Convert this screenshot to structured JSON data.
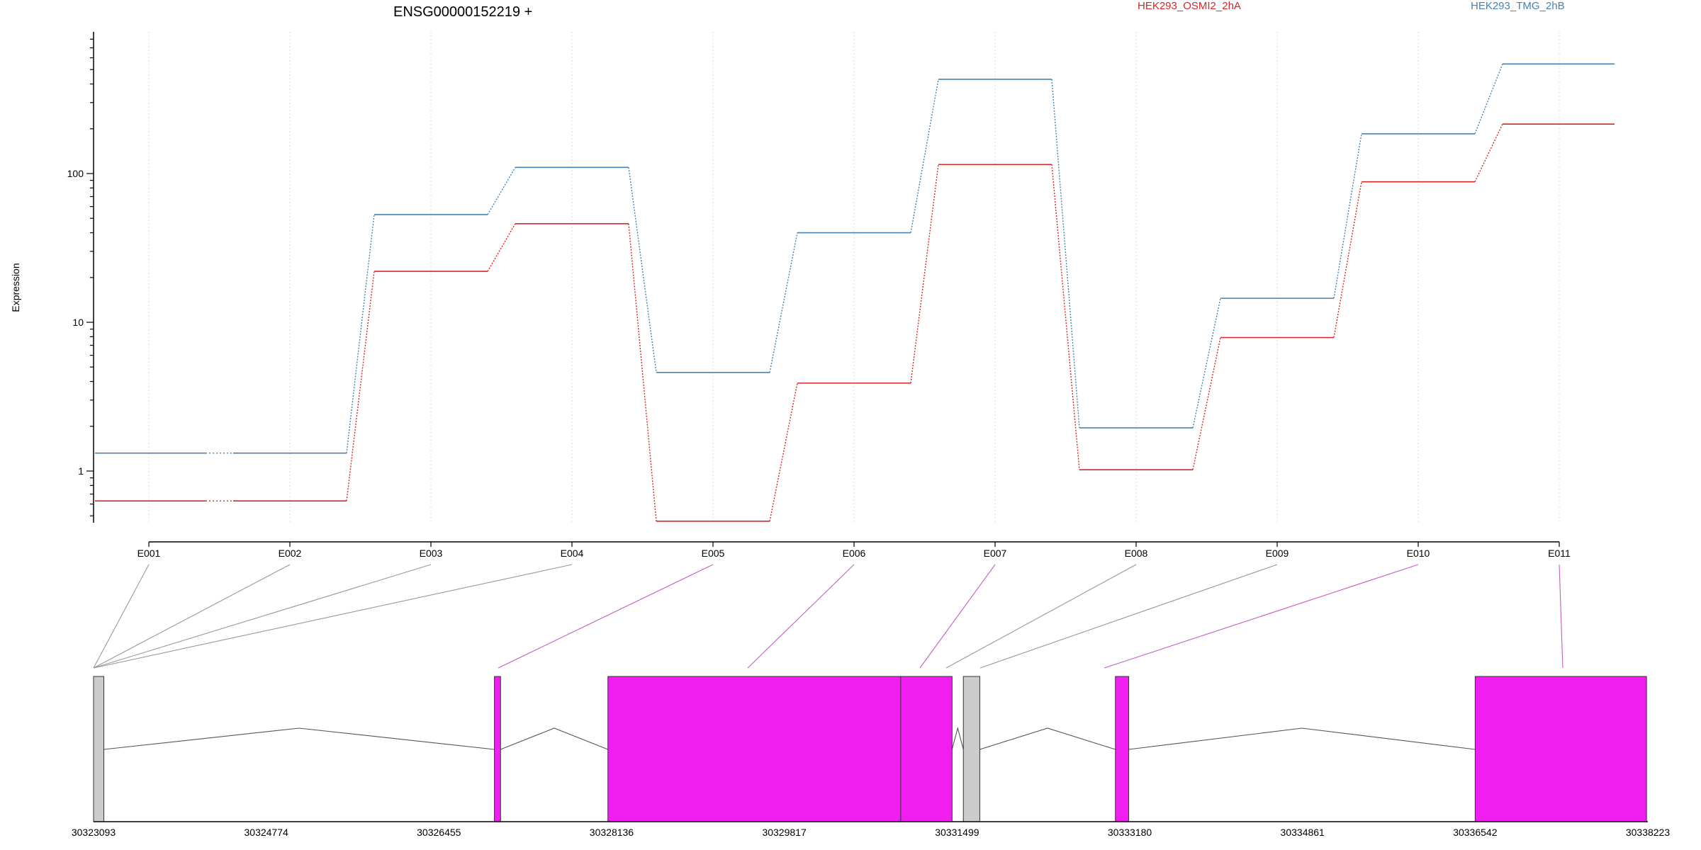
{
  "chart_data": {
    "type": "line",
    "title": "ENSG00000152219 +",
    "ylabel": "Expression",
    "xlabel": "",
    "yscale": "log",
    "ylim": [
      0.45,
      800
    ],
    "yticks": [
      1,
      10,
      100
    ],
    "ytick_labels": [
      "1",
      "10",
      "100"
    ],
    "grid": "vertical",
    "legend_placement": "top",
    "categories": [
      "E001",
      "E002",
      "E003",
      "E004",
      "E005",
      "E006",
      "E007",
      "E008",
      "E009",
      "E010",
      "E011"
    ],
    "series": [
      {
        "name": "HEK293_OSMI2_2hA",
        "color": "#d62728",
        "values": [
          0.63,
          0.63,
          22,
          46,
          0.46,
          3.9,
          115,
          1.02,
          7.9,
          88,
          215
        ]
      },
      {
        "name": "HEK293_TMG_2hB",
        "color": "#4682b4",
        "values": [
          1.32,
          1.32,
          53,
          110,
          4.6,
          40,
          430,
          1.95,
          14.5,
          185,
          545
        ]
      }
    ],
    "gene_model": {
      "coord_ticks": [
        "30323093",
        "30324774",
        "30326455",
        "30328136",
        "30329817",
        "30331499",
        "30333180",
        "30334861",
        "30336542",
        "30338223"
      ],
      "coord_range": [
        30323093,
        30338223
      ],
      "exonic_color": "#f01ef0",
      "other_color": "#cccccc",
      "exons": [
        {
          "start": 30323093,
          "end": 30323193,
          "kind": "other"
        },
        {
          "start": 30326995,
          "end": 30327055,
          "kind": "exonic"
        },
        {
          "start": 30328100,
          "end": 30331450,
          "kind": "exonic"
        },
        {
          "start": 30331560,
          "end": 30331720,
          "kind": "other"
        },
        {
          "start": 30333040,
          "end": 30333170,
          "kind": "exonic"
        },
        {
          "start": 30336542,
          "end": 30338210,
          "kind": "exonic"
        }
      ],
      "boundaries": [
        30330950
      ]
    }
  }
}
